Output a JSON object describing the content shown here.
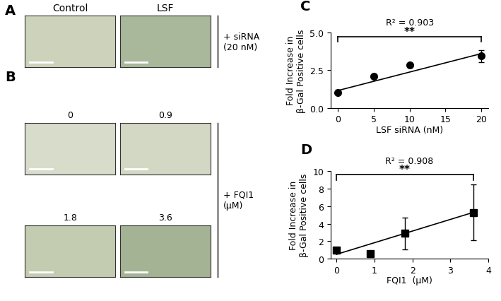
{
  "panels": {
    "A": {
      "label": "A",
      "images": [
        "Control",
        "LSF"
      ],
      "treatment": "+ siRNA\n(20 nM)"
    },
    "B": {
      "label": "B",
      "images": [
        "0",
        "0.9",
        "1.8",
        "3.6"
      ],
      "treatment": "+ FQI1\n(μM)"
    }
  },
  "chart_data": [
    {
      "type": "scatter",
      "panel": "C",
      "x": [
        0,
        5,
        10,
        20
      ],
      "values": [
        1.0,
        2.1,
        2.85,
        3.45
      ],
      "errors": [
        0.05,
        0.1,
        0.1,
        0.4
      ],
      "marker": "circle",
      "color": "#000000",
      "xlabel": "LSF siRNA (nM)",
      "ylabel": "Fold Increase in\nβ-Gal Positive cells",
      "xlim": [
        -1,
        21
      ],
      "xticks": [
        0,
        5,
        10,
        15,
        20
      ],
      "ylim": [
        0,
        5
      ],
      "yticks": [
        {
          "value": 0,
          "label": "0.0"
        },
        {
          "value": 2.5,
          "label": "2.5"
        },
        {
          "value": 5,
          "label": "5.0"
        }
      ],
      "annotations": [
        "R² = 0.903"
      ],
      "fit_line": {
        "x": [
          0,
          20
        ],
        "values": [
          1.15,
          3.6
        ]
      },
      "significance": {
        "x": [
          0,
          20
        ],
        "y": 4.7,
        "label": "**"
      }
    },
    {
      "type": "scatter",
      "panel": "D",
      "x": [
        0,
        0.9,
        1.8,
        3.6
      ],
      "values": [
        1.0,
        0.6,
        2.9,
        5.3
      ],
      "errors": [
        0.2,
        0.3,
        1.8,
        3.2
      ],
      "marker": "square",
      "color": "#000000",
      "xlabel": "FQI1  (μM)",
      "ylabel": "Fold Increase in\nβ-Gal Positive cells",
      "xlim": [
        -0.15,
        4
      ],
      "xticks": [
        0,
        1,
        2,
        3,
        4
      ],
      "ylim": [
        0,
        10
      ],
      "yticks": [
        0,
        2,
        4,
        6,
        8,
        10
      ],
      "annotations": [
        "R² = 0.908"
      ],
      "fit_line": {
        "x": [
          0,
          3.6
        ],
        "values": [
          0.5,
          5.3
        ]
      },
      "significance": {
        "x": [
          0,
          3.6
        ],
        "y": 9.6,
        "label": "**"
      }
    }
  ]
}
